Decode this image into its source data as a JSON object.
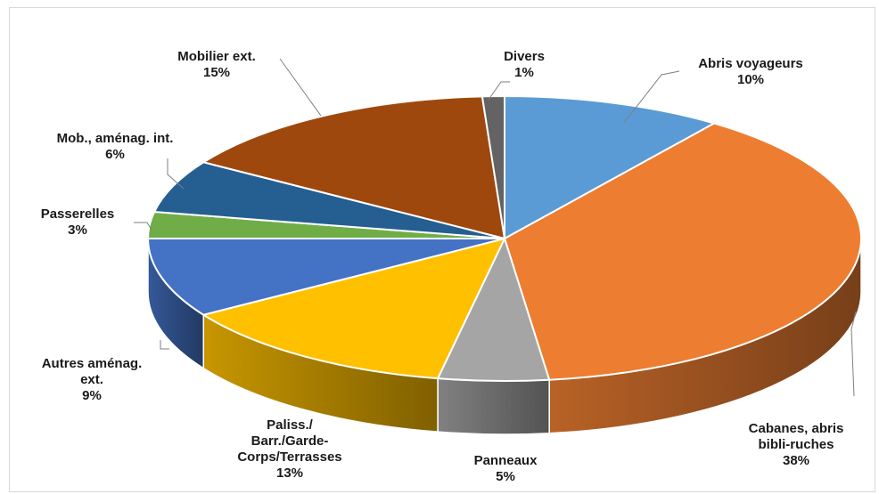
{
  "chart_data": {
    "type": "pie",
    "style": "3d-exploded-none",
    "title": "",
    "slices": [
      {
        "label": "Abris voyageurs",
        "value": 10,
        "value_label": "10%",
        "color": "#5B9BD5"
      },
      {
        "label": "Cabanes, abris bibli-ruches",
        "value": 38,
        "value_label": "38%",
        "color": "#ED7D31"
      },
      {
        "label": "Panneaux",
        "value": 5,
        "value_label": "5%",
        "color": "#A5A5A5"
      },
      {
        "label": "Paliss./ Barr./Garde-Corps/Terrasses",
        "value": 13,
        "value_label": "13%",
        "color": "#FFC000"
      },
      {
        "label": "Autres aménag. ext.",
        "value": 9,
        "value_label": "9%",
        "color": "#4472C4"
      },
      {
        "label": "Passerelles",
        "value": 3,
        "value_label": "3%",
        "color": "#70AD47"
      },
      {
        "label": "Mob., aménag. int.",
        "value": 6,
        "value_label": "6%",
        "color": "#255E91"
      },
      {
        "label": "Mobilier ext.",
        "value": 15,
        "value_label": "15%",
        "color": "#9E480E"
      },
      {
        "label": "Divers",
        "value": 1,
        "value_label": "1%",
        "color": "#636363"
      }
    ]
  }
}
